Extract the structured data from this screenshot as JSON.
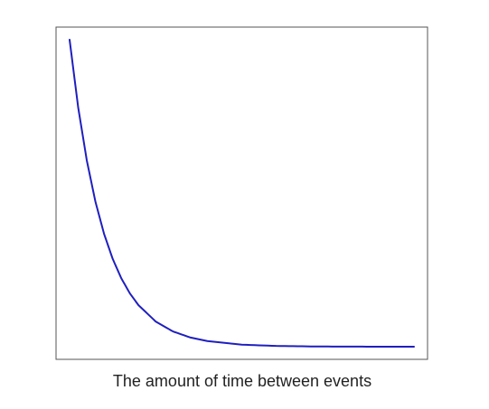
{
  "chart_data": {
    "type": "line",
    "title": "",
    "xlabel": "The amount of time between events",
    "ylabel": "",
    "grid": false,
    "legend": "none",
    "series": [
      {
        "color": "#1f1fbf",
        "x": [
          0,
          0.25,
          0.5,
          0.75,
          1,
          1.25,
          1.5,
          1.75,
          2,
          2.5,
          3,
          3.5,
          4,
          5,
          6,
          7,
          8,
          9,
          10
        ],
        "y": [
          1.0,
          0.7788,
          0.6065,
          0.4724,
          0.3679,
          0.2865,
          0.2231,
          0.1738,
          0.1353,
          0.0821,
          0.0498,
          0.0302,
          0.0183,
          0.0067,
          0.0025,
          0.0009,
          0.0003,
          0.0001,
          0.0
        ]
      }
    ],
    "xlim": [
      0,
      10
    ],
    "ylim": [
      0,
      1
    ],
    "frame_color": "#555555"
  }
}
